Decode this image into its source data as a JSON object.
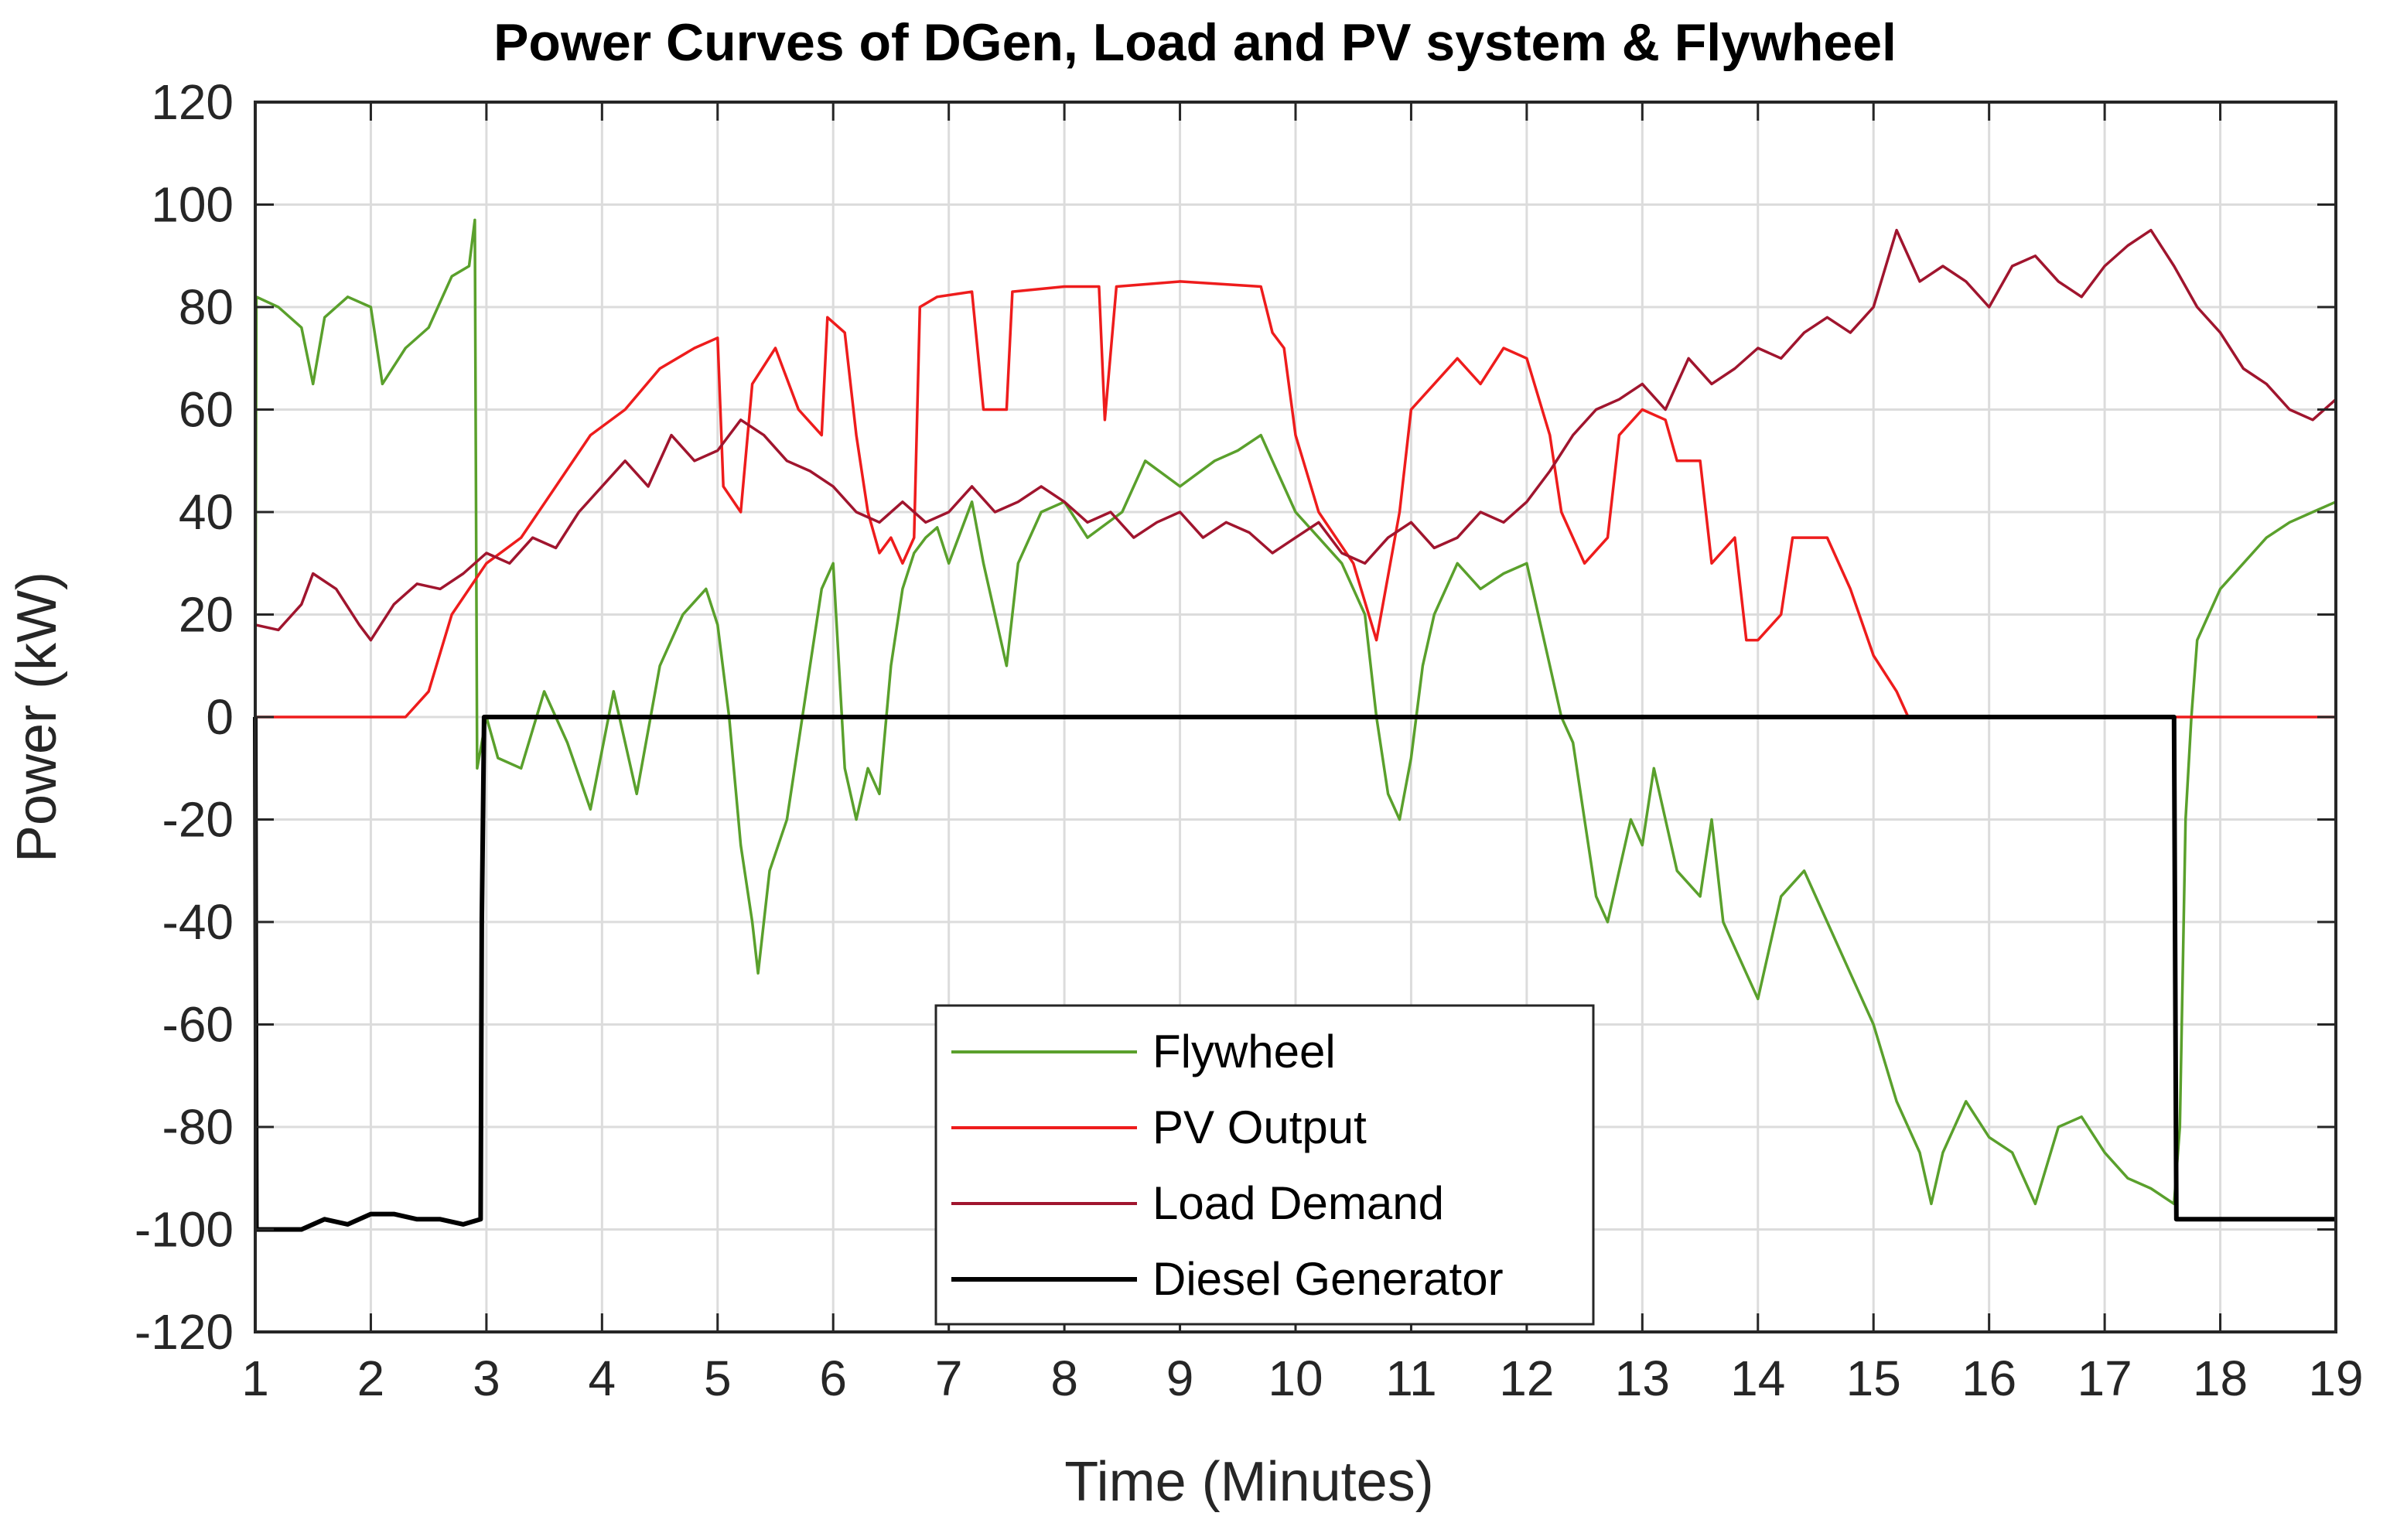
{
  "chart_data": {
    "type": "line",
    "title": "Power Curves of DGen, Load and PV system & Flywheel",
    "xlabel": "Time (Minutes)",
    "ylabel": "Power (kW)",
    "xlim": [
      1,
      19
    ],
    "ylim": [
      -120,
      120
    ],
    "x_ticks": [
      1,
      2,
      3,
      4,
      5,
      6,
      7,
      8,
      9,
      10,
      11,
      12,
      13,
      14,
      15,
      16,
      17,
      18,
      19
    ],
    "y_ticks": [
      -120,
      -100,
      -80,
      -60,
      -40,
      -20,
      0,
      20,
      40,
      60,
      80,
      100,
      120
    ],
    "grid": true,
    "legend_position": "bottom-center",
    "series": [
      {
        "name": "Flywheel",
        "color": "#5aa02c",
        "points": [
          [
            1.0,
            -1
          ],
          [
            1.01,
            82
          ],
          [
            1.2,
            80
          ],
          [
            1.4,
            76
          ],
          [
            1.5,
            65
          ],
          [
            1.6,
            78
          ],
          [
            1.8,
            82
          ],
          [
            2.0,
            80
          ],
          [
            2.1,
            65
          ],
          [
            2.3,
            72
          ],
          [
            2.5,
            76
          ],
          [
            2.7,
            86
          ],
          [
            2.85,
            88
          ],
          [
            2.9,
            97
          ],
          [
            2.92,
            -10
          ],
          [
            3.0,
            0
          ],
          [
            3.1,
            -8
          ],
          [
            3.3,
            -10
          ],
          [
            3.5,
            5
          ],
          [
            3.7,
            -5
          ],
          [
            3.9,
            -18
          ],
          [
            4.1,
            5
          ],
          [
            4.3,
            -15
          ],
          [
            4.5,
            10
          ],
          [
            4.7,
            20
          ],
          [
            4.9,
            25
          ],
          [
            5.0,
            18
          ],
          [
            5.1,
            0
          ],
          [
            5.2,
            -25
          ],
          [
            5.3,
            -40
          ],
          [
            5.35,
            -50
          ],
          [
            5.45,
            -30
          ],
          [
            5.6,
            -20
          ],
          [
            5.7,
            -5
          ],
          [
            5.8,
            10
          ],
          [
            5.9,
            25
          ],
          [
            6.0,
            30
          ],
          [
            6.1,
            -10
          ],
          [
            6.2,
            -20
          ],
          [
            6.3,
            -10
          ],
          [
            6.4,
            -15
          ],
          [
            6.5,
            10
          ],
          [
            6.6,
            25
          ],
          [
            6.7,
            32
          ],
          [
            6.8,
            35
          ],
          [
            6.9,
            37
          ],
          [
            7.0,
            30
          ],
          [
            7.2,
            42
          ],
          [
            7.3,
            30
          ],
          [
            7.4,
            20
          ],
          [
            7.5,
            10
          ],
          [
            7.6,
            30
          ],
          [
            7.8,
            40
          ],
          [
            8.0,
            42
          ],
          [
            8.2,
            35
          ],
          [
            8.5,
            40
          ],
          [
            8.7,
            50
          ],
          [
            9.0,
            45
          ],
          [
            9.3,
            50
          ],
          [
            9.5,
            52
          ],
          [
            9.7,
            55
          ],
          [
            9.8,
            50
          ],
          [
            10.0,
            40
          ],
          [
            10.2,
            35
          ],
          [
            10.4,
            30
          ],
          [
            10.6,
            20
          ],
          [
            10.7,
            0
          ],
          [
            10.8,
            -15
          ],
          [
            10.9,
            -20
          ],
          [
            11.0,
            -8
          ],
          [
            11.1,
            10
          ],
          [
            11.2,
            20
          ],
          [
            11.4,
            30
          ],
          [
            11.6,
            25
          ],
          [
            11.8,
            28
          ],
          [
            12.0,
            30
          ],
          [
            12.1,
            20
          ],
          [
            12.2,
            10
          ],
          [
            12.3,
            0
          ],
          [
            12.4,
            -5
          ],
          [
            12.5,
            -20
          ],
          [
            12.6,
            -35
          ],
          [
            12.7,
            -40
          ],
          [
            12.8,
            -30
          ],
          [
            12.9,
            -20
          ],
          [
            13.0,
            -25
          ],
          [
            13.1,
            -10
          ],
          [
            13.3,
            -30
          ],
          [
            13.5,
            -35
          ],
          [
            13.6,
            -20
          ],
          [
            13.7,
            -40
          ],
          [
            13.9,
            -50
          ],
          [
            14.0,
            -55
          ],
          [
            14.2,
            -35
          ],
          [
            14.4,
            -30
          ],
          [
            14.6,
            -40
          ],
          [
            14.8,
            -50
          ],
          [
            15.0,
            -60
          ],
          [
            15.2,
            -75
          ],
          [
            15.4,
            -85
          ],
          [
            15.5,
            -95
          ],
          [
            15.6,
            -85
          ],
          [
            15.8,
            -75
          ],
          [
            16.0,
            -82
          ],
          [
            16.2,
            -85
          ],
          [
            16.4,
            -95
          ],
          [
            16.6,
            -80
          ],
          [
            16.8,
            -78
          ],
          [
            17.0,
            -85
          ],
          [
            17.2,
            -90
          ],
          [
            17.4,
            -92
          ],
          [
            17.6,
            -95
          ],
          [
            17.65,
            -80
          ],
          [
            17.7,
            -20
          ],
          [
            17.75,
            0
          ],
          [
            17.8,
            15
          ],
          [
            18.0,
            25
          ],
          [
            18.2,
            30
          ],
          [
            18.4,
            35
          ],
          [
            18.6,
            38
          ],
          [
            18.8,
            40
          ],
          [
            19.0,
            42
          ]
        ]
      },
      {
        "name": "PV Output",
        "color": "#ee1c1c",
        "points": [
          [
            1.0,
            0
          ],
          [
            2.3,
            0
          ],
          [
            2.5,
            5
          ],
          [
            2.7,
            20
          ],
          [
            3.0,
            30
          ],
          [
            3.3,
            35
          ],
          [
            3.6,
            45
          ],
          [
            3.9,
            55
          ],
          [
            4.2,
            60
          ],
          [
            4.5,
            68
          ],
          [
            4.8,
            72
          ],
          [
            5.0,
            74
          ],
          [
            5.05,
            45
          ],
          [
            5.2,
            40
          ],
          [
            5.3,
            65
          ],
          [
            5.5,
            72
          ],
          [
            5.7,
            60
          ],
          [
            5.9,
            55
          ],
          [
            5.95,
            78
          ],
          [
            6.1,
            75
          ],
          [
            6.2,
            55
          ],
          [
            6.3,
            40
          ],
          [
            6.4,
            32
          ],
          [
            6.5,
            35
          ],
          [
            6.6,
            30
          ],
          [
            6.7,
            35
          ],
          [
            6.75,
            80
          ],
          [
            6.9,
            82
          ],
          [
            7.2,
            83
          ],
          [
            7.3,
            60
          ],
          [
            7.5,
            60
          ],
          [
            7.55,
            83
          ],
          [
            8.0,
            84
          ],
          [
            8.3,
            84
          ],
          [
            8.35,
            58
          ],
          [
            8.45,
            84
          ],
          [
            9.0,
            85
          ],
          [
            9.7,
            84
          ],
          [
            9.8,
            75
          ],
          [
            9.9,
            72
          ],
          [
            10.0,
            55
          ],
          [
            10.2,
            40
          ],
          [
            10.5,
            30
          ],
          [
            10.7,
            15
          ],
          [
            10.9,
            40
          ],
          [
            11.0,
            60
          ],
          [
            11.2,
            65
          ],
          [
            11.4,
            70
          ],
          [
            11.6,
            65
          ],
          [
            11.8,
            72
          ],
          [
            12.0,
            70
          ],
          [
            12.2,
            55
          ],
          [
            12.3,
            40
          ],
          [
            12.5,
            30
          ],
          [
            12.7,
            35
          ],
          [
            12.8,
            55
          ],
          [
            13.0,
            60
          ],
          [
            13.2,
            58
          ],
          [
            13.3,
            50
          ],
          [
            13.5,
            50
          ],
          [
            13.6,
            30
          ],
          [
            13.8,
            35
          ],
          [
            13.9,
            15
          ],
          [
            14.0,
            15
          ],
          [
            14.2,
            20
          ],
          [
            14.3,
            35
          ],
          [
            14.6,
            35
          ],
          [
            14.8,
            25
          ],
          [
            15.0,
            12
          ],
          [
            15.2,
            5
          ],
          [
            15.3,
            0
          ],
          [
            19.0,
            0
          ]
        ]
      },
      {
        "name": "Load Demand",
        "color": "#a0152e",
        "points": [
          [
            1.0,
            18
          ],
          [
            1.2,
            17
          ],
          [
            1.4,
            22
          ],
          [
            1.5,
            28
          ],
          [
            1.7,
            25
          ],
          [
            1.9,
            18
          ],
          [
            2.0,
            15
          ],
          [
            2.2,
            22
          ],
          [
            2.4,
            26
          ],
          [
            2.6,
            25
          ],
          [
            2.8,
            28
          ],
          [
            3.0,
            32
          ],
          [
            3.2,
            30
          ],
          [
            3.4,
            35
          ],
          [
            3.6,
            33
          ],
          [
            3.8,
            40
          ],
          [
            4.0,
            45
          ],
          [
            4.2,
            50
          ],
          [
            4.4,
            45
          ],
          [
            4.6,
            55
          ],
          [
            4.8,
            50
          ],
          [
            5.0,
            52
          ],
          [
            5.2,
            58
          ],
          [
            5.4,
            55
          ],
          [
            5.6,
            50
          ],
          [
            5.8,
            48
          ],
          [
            6.0,
            45
          ],
          [
            6.2,
            40
          ],
          [
            6.4,
            38
          ],
          [
            6.6,
            42
          ],
          [
            6.8,
            38
          ],
          [
            7.0,
            40
          ],
          [
            7.2,
            45
          ],
          [
            7.4,
            40
          ],
          [
            7.6,
            42
          ],
          [
            7.8,
            45
          ],
          [
            8.0,
            42
          ],
          [
            8.2,
            38
          ],
          [
            8.4,
            40
          ],
          [
            8.6,
            35
          ],
          [
            8.8,
            38
          ],
          [
            9.0,
            40
          ],
          [
            9.2,
            35
          ],
          [
            9.4,
            38
          ],
          [
            9.6,
            36
          ],
          [
            9.8,
            32
          ],
          [
            10.0,
            35
          ],
          [
            10.2,
            38
          ],
          [
            10.4,
            32
          ],
          [
            10.6,
            30
          ],
          [
            10.8,
            35
          ],
          [
            11.0,
            38
          ],
          [
            11.2,
            33
          ],
          [
            11.4,
            35
          ],
          [
            11.6,
            40
          ],
          [
            11.8,
            38
          ],
          [
            12.0,
            42
          ],
          [
            12.2,
            48
          ],
          [
            12.4,
            55
          ],
          [
            12.6,
            60
          ],
          [
            12.8,
            62
          ],
          [
            13.0,
            65
          ],
          [
            13.2,
            60
          ],
          [
            13.4,
            70
          ],
          [
            13.6,
            65
          ],
          [
            13.8,
            68
          ],
          [
            14.0,
            72
          ],
          [
            14.2,
            70
          ],
          [
            14.4,
            75
          ],
          [
            14.6,
            78
          ],
          [
            14.8,
            75
          ],
          [
            15.0,
            80
          ],
          [
            15.2,
            95
          ],
          [
            15.4,
            85
          ],
          [
            15.6,
            88
          ],
          [
            15.8,
            85
          ],
          [
            16.0,
            80
          ],
          [
            16.2,
            88
          ],
          [
            16.4,
            90
          ],
          [
            16.6,
            85
          ],
          [
            16.8,
            82
          ],
          [
            17.0,
            88
          ],
          [
            17.2,
            92
          ],
          [
            17.4,
            95
          ],
          [
            17.6,
            88
          ],
          [
            17.8,
            80
          ],
          [
            18.0,
            75
          ],
          [
            18.2,
            68
          ],
          [
            18.4,
            65
          ],
          [
            18.6,
            60
          ],
          [
            18.8,
            58
          ],
          [
            19.0,
            62
          ]
        ]
      },
      {
        "name": "Diesel Generator",
        "color": "#000000",
        "points": [
          [
            1.0,
            0
          ],
          [
            1.01,
            -100
          ],
          [
            1.2,
            -100
          ],
          [
            1.4,
            -100
          ],
          [
            1.6,
            -98
          ],
          [
            1.8,
            -99
          ],
          [
            2.0,
            -97
          ],
          [
            2.2,
            -97
          ],
          [
            2.4,
            -98
          ],
          [
            2.6,
            -98
          ],
          [
            2.8,
            -99
          ],
          [
            2.95,
            -98
          ],
          [
            2.96,
            -40
          ],
          [
            2.98,
            0
          ],
          [
            17.6,
            0
          ],
          [
            17.62,
            -98
          ],
          [
            18.0,
            -98
          ],
          [
            19.0,
            -98
          ]
        ]
      }
    ]
  }
}
